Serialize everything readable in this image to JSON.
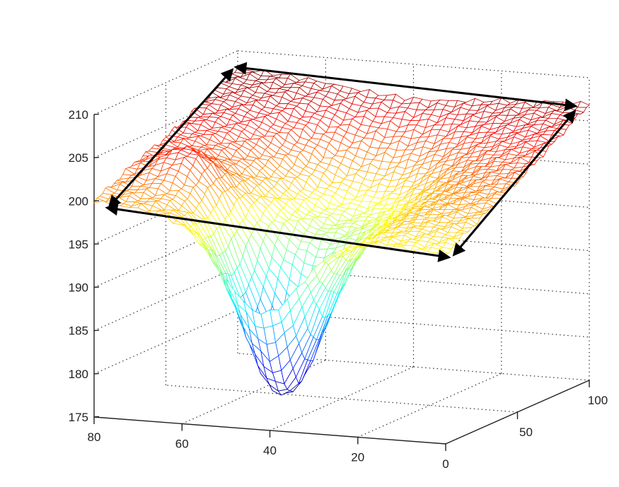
{
  "chart_data": {
    "type": "surface",
    "style": "mesh",
    "colormap": "jet",
    "title": "",
    "xlabel": "",
    "ylabel": "",
    "zlabel": "",
    "xlim": [
      0,
      80
    ],
    "ylim": [
      0,
      100
    ],
    "zlim": [
      175,
      210
    ],
    "grid": true,
    "x_ticks": [
      "0",
      "20",
      "40",
      "60",
      "80"
    ],
    "x_tick_values": [
      0,
      20,
      40,
      60,
      80
    ],
    "y_ticks": [
      "0",
      "50",
      "100"
    ],
    "y_tick_values": [
      0,
      50,
      100
    ],
    "z_ticks": [
      "175",
      "180",
      "185",
      "190",
      "195",
      "200",
      "205",
      "210"
    ],
    "z_tick_values": [
      175,
      180,
      185,
      190,
      195,
      200,
      205,
      210
    ],
    "surface_estimate": {
      "corner_values": {
        "x0_y0": 197,
        "x80_y0": 200,
        "x80_y100": 208,
        "x0_y100": 207
      },
      "depressions": [
        {
          "center_x": 42,
          "center_y": 15,
          "depth": 20,
          "spread_x": 150,
          "spread_y": 300
        },
        {
          "center_x": 40,
          "center_y": 55,
          "depth": 8,
          "spread_x": 500,
          "spread_y": 1200
        }
      ],
      "ridges": [
        {
          "center_x": 68,
          "center_y": 30,
          "height": 3,
          "spread_x": 60,
          "spread_y": 120
        }
      ],
      "approx_min": 178.5,
      "approx_max": 210
    },
    "annotations": [
      {
        "type": "double-arrow",
        "from": "corner x80,y0",
        "to": "corner x80,y100"
      },
      {
        "type": "double-arrow",
        "from": "corner x80,y100",
        "to": "corner x0,y100"
      },
      {
        "type": "double-arrow",
        "from": "corner x0,y100",
        "to": "corner x0,y0"
      },
      {
        "type": "double-arrow",
        "from": "corner x0,y0",
        "to": "corner x80,y0"
      }
    ]
  }
}
